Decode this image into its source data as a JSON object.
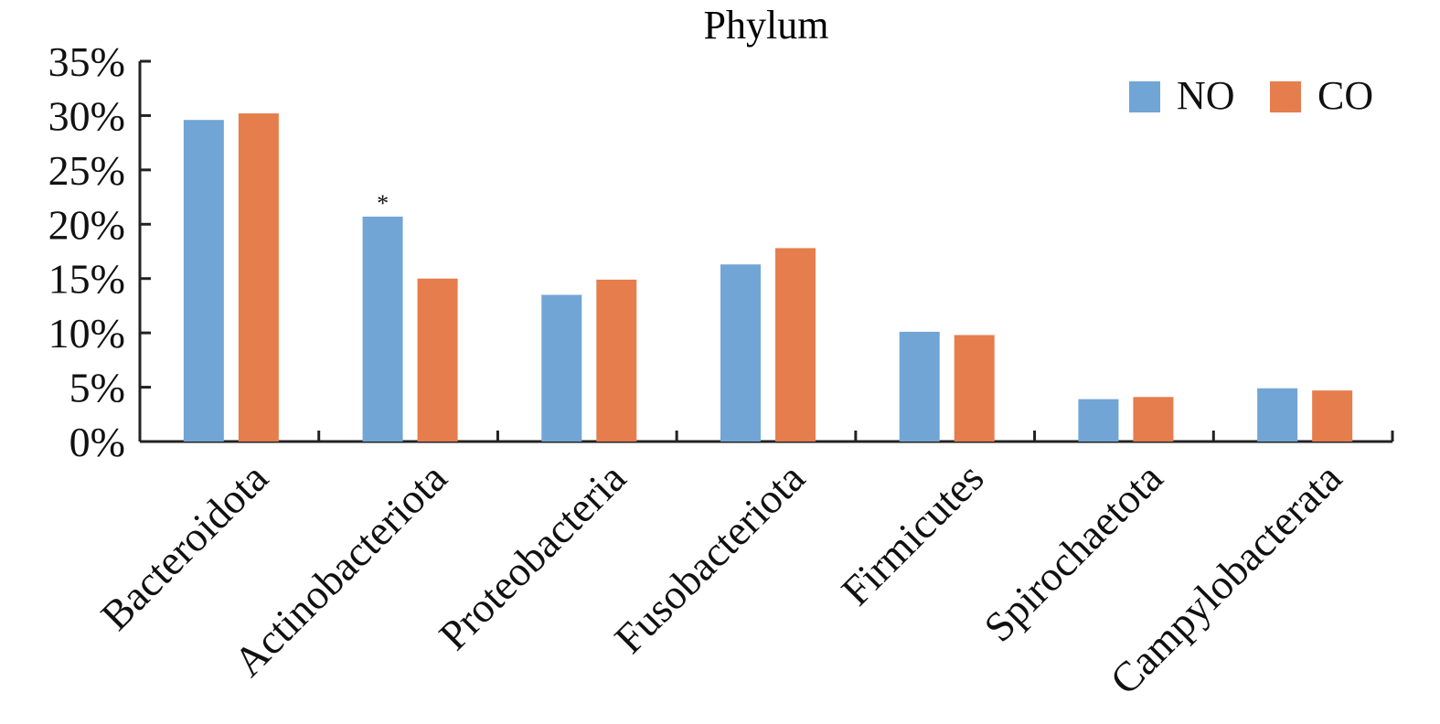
{
  "chart_data": {
    "type": "bar",
    "title": "Phylum",
    "xlabel": "",
    "ylabel": "",
    "ylim": [
      0,
      35
    ],
    "yticks": [
      "0%",
      "5%",
      "10%",
      "15%",
      "20%",
      "25%",
      "30%",
      "35%"
    ],
    "grid": false,
    "legend_position": "top-right",
    "categories": [
      "Bacteroidota",
      "Actinobacteriota",
      "Proteobacteria",
      "Fusobacteriota",
      "Firmicutes",
      "Spirochaetota",
      "Campylobacterata"
    ],
    "series": [
      {
        "name": "NO",
        "color": "#70A5D5",
        "values": [
          29.6,
          20.7,
          13.5,
          16.3,
          10.1,
          3.9,
          4.9
        ]
      },
      {
        "name": "CO",
        "color": "#E67D4D",
        "values": [
          30.2,
          15.0,
          14.9,
          17.8,
          9.8,
          4.1,
          4.7
        ]
      }
    ],
    "annotations": [
      {
        "category": "Actinobacteriota",
        "series": "NO",
        "text": "*"
      }
    ]
  }
}
